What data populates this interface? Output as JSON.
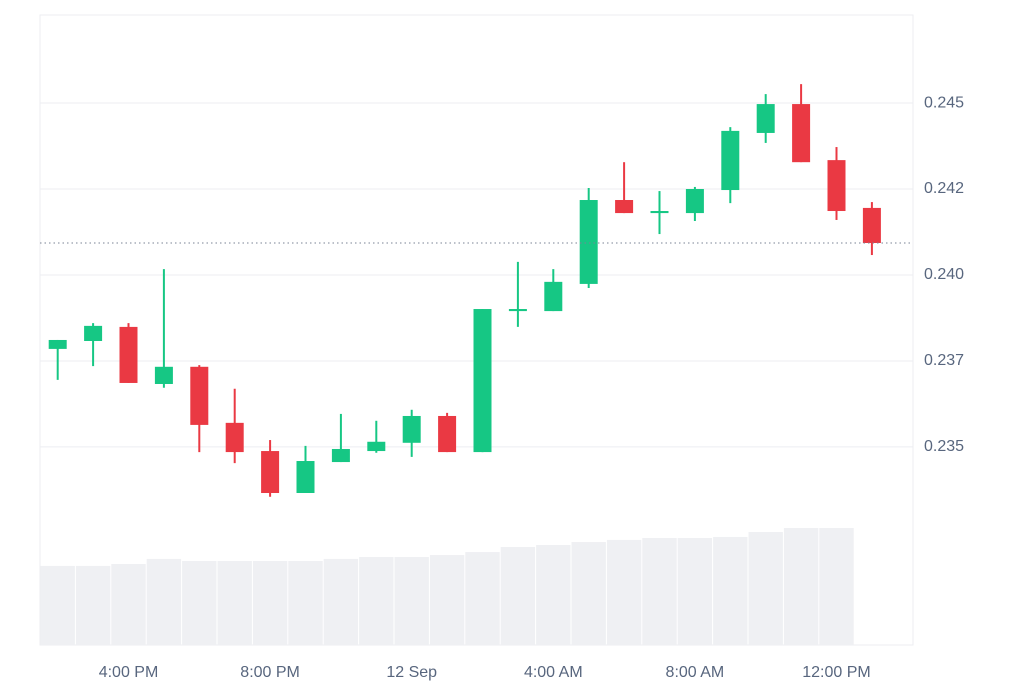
{
  "chart_data": {
    "type": "candlestick",
    "categories": [
      null,
      null,
      "4:00 PM",
      null,
      null,
      null,
      "8:00 PM",
      null,
      null,
      null,
      "12 Sep",
      null,
      null,
      null,
      "4:00 AM",
      null,
      null,
      null,
      "8:00 AM",
      null,
      null,
      null,
      "12:00 PM",
      null
    ],
    "open": [
      0.23785,
      0.23808,
      0.23849,
      0.23683,
      0.23733,
      0.2357,
      0.23488,
      0.23366,
      0.23456,
      0.23488,
      0.23512,
      0.2359,
      0.23485,
      0.23895,
      0.23895,
      0.23974,
      0.24218,
      0.2418,
      0.2418,
      0.24247,
      0.24413,
      0.24497,
      0.24334,
      0.24195
    ],
    "high": [
      0.23811,
      0.2386,
      0.2386,
      0.24017,
      0.23738,
      0.23669,
      0.2352,
      0.23503,
      0.23596,
      0.23576,
      0.23608,
      0.23599,
      0.23901,
      0.24038,
      0.24017,
      0.24253,
      0.24328,
      0.24244,
      0.24256,
      0.2443,
      0.24526,
      0.24555,
      0.24372,
      0.24212
    ],
    "low": [
      0.23695,
      0.23735,
      0.23686,
      0.23672,
      0.23485,
      0.23453,
      0.23355,
      0.23366,
      0.23456,
      0.23483,
      0.23471,
      0.23485,
      0.23485,
      0.23849,
      0.23895,
      0.23962,
      0.2418,
      0.24119,
      0.24157,
      0.24209,
      0.24384,
      0.24328,
      0.2416,
      0.24058
    ],
    "close": [
      0.23811,
      0.23852,
      0.23686,
      0.23733,
      0.23564,
      0.23485,
      0.23366,
      0.23459,
      0.23494,
      0.23515,
      0.2359,
      0.23485,
      0.23901,
      0.23901,
      0.2398,
      0.24218,
      0.2418,
      0.24186,
      0.2425,
      0.24419,
      0.24497,
      0.24328,
      0.24186,
      0.24093
    ],
    "volume": [
      60.8,
      60.8,
      62.3,
      66.2,
      64.6,
      64.6,
      64.6,
      64.6,
      66.2,
      67.7,
      67.7,
      69.2,
      71.5,
      75.4,
      76.9,
      79.2,
      80.8,
      82.3,
      82.3,
      83.1,
      86.9,
      90.0,
      90.0,
      null
    ],
    "volume_ylim": [
      0,
      100
    ],
    "ylim": [
      0.22924,
      0.24756
    ],
    "yticks": [
      {
        "value": 0.235,
        "label": "0.235"
      },
      {
        "value": 0.2375,
        "label": "0.237"
      },
      {
        "value": 0.24,
        "label": "0.240"
      },
      {
        "value": 0.2425,
        "label": "0.242"
      },
      {
        "value": 0.245,
        "label": "0.245"
      }
    ],
    "grid": true,
    "up_color": "#16c784",
    "down_color": "#ea3943",
    "volume_color": "#eff0f3"
  }
}
